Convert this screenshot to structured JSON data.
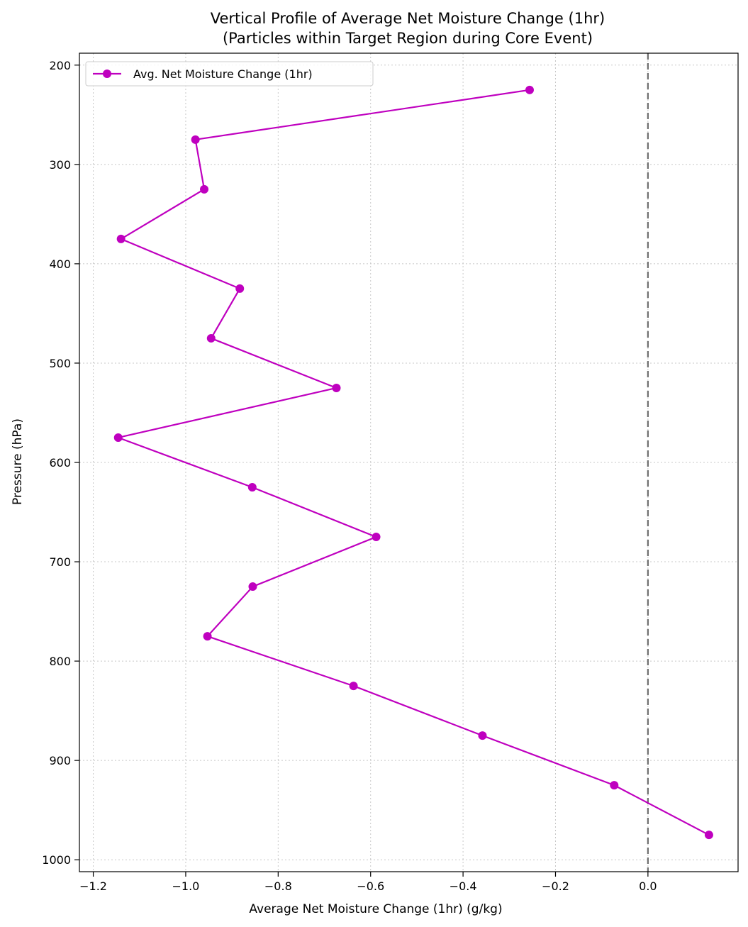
{
  "chart_data": {
    "type": "line",
    "title_lines": [
      "Vertical Profile of Average Net Moisture Change (1hr)",
      "(Particles within Target Region during Core Event)"
    ],
    "xlabel": "Average Net Moisture Change (1hr) (g/kg)",
    "ylabel": "Pressure (hPa)",
    "xlim": [
      -1.23,
      0.195
    ],
    "ylim": [
      1012,
      188
    ],
    "y_inverted": true,
    "x_ticks": [
      -1.2,
      -1.0,
      -0.8,
      -0.6,
      -0.4,
      -0.2,
      0.0
    ],
    "x_tick_labels": [
      "−1.2",
      "−1.0",
      "−0.8",
      "−0.6",
      "−0.4",
      "−0.2",
      "0.0"
    ],
    "y_ticks": [
      200,
      300,
      400,
      500,
      600,
      700,
      800,
      900,
      1000
    ],
    "y_tick_labels": [
      "200",
      "300",
      "400",
      "500",
      "600",
      "700",
      "800",
      "900",
      "1000"
    ],
    "grid": true,
    "reference_line": {
      "x": 0.0,
      "style": "dashed",
      "color": "#6e6e6e"
    },
    "legend": {
      "placement": "top-left",
      "entries": [
        "Avg. Net Moisture Change (1hr)"
      ]
    },
    "series": [
      {
        "name": "Avg. Net Moisture Change (1hr)",
        "color": "#bf00bf",
        "points": [
          {
            "x": -0.256,
            "y": 225
          },
          {
            "x": -0.979,
            "y": 275
          },
          {
            "x": -0.96,
            "y": 325
          },
          {
            "x": -1.14,
            "y": 375
          },
          {
            "x": -0.883,
            "y": 425
          },
          {
            "x": -0.945,
            "y": 475
          },
          {
            "x": -0.674,
            "y": 525
          },
          {
            "x": -1.146,
            "y": 575
          },
          {
            "x": -0.856,
            "y": 625
          },
          {
            "x": -0.588,
            "y": 675
          },
          {
            "x": -0.855,
            "y": 725
          },
          {
            "x": -0.953,
            "y": 775
          },
          {
            "x": -0.637,
            "y": 825
          },
          {
            "x": -0.358,
            "y": 875
          },
          {
            "x": -0.073,
            "y": 925
          },
          {
            "x": 0.132,
            "y": 975
          }
        ]
      }
    ]
  }
}
